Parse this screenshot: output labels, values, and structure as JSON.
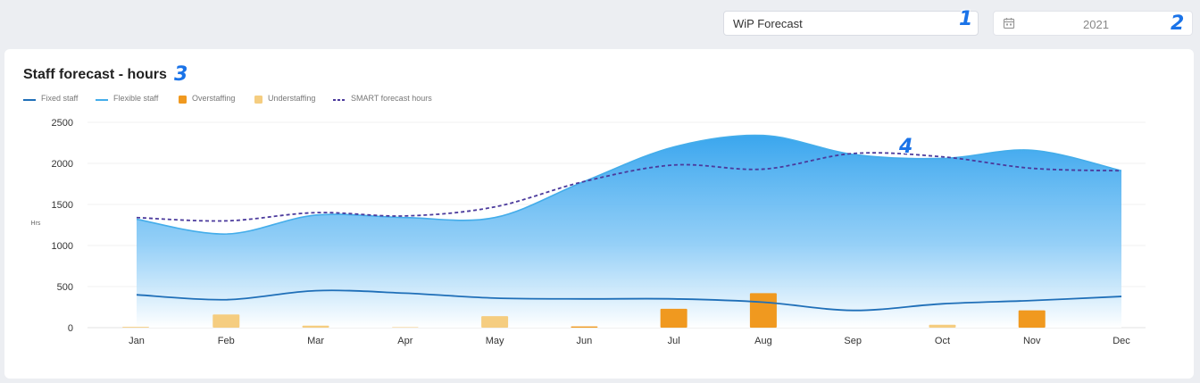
{
  "header": {
    "view_select": "WiP Forecast",
    "year": "2021",
    "year_icon": "calendar-icon"
  },
  "callouts": [
    "1",
    "2",
    "3",
    "4"
  ],
  "card": {
    "title": "Staff forecast - hours"
  },
  "colors": {
    "fixed": "#1f6fb8",
    "flexible": "#44adea",
    "overstaffing": "#f0991f",
    "understaffing": "#f5cd80",
    "smart": "#4b3a9c"
  },
  "legend": [
    {
      "key": "fixed",
      "label": "Fixed staff",
      "kind": "line"
    },
    {
      "key": "flexible",
      "label": "Flexible staff",
      "kind": "line"
    },
    {
      "key": "overstaffing",
      "label": "Overstaffing",
      "kind": "box"
    },
    {
      "key": "understaffing",
      "label": "Understaffing",
      "kind": "box"
    },
    {
      "key": "smart",
      "label": "SMART forecast hours",
      "kind": "dash"
    }
  ],
  "chart_data": {
    "type": "area",
    "title": "Staff forecast - hours",
    "ylabel": "Hrs",
    "xlabel": "",
    "ylim": [
      0,
      2500
    ],
    "yticks": [
      0,
      500,
      1000,
      1500,
      2000,
      2500
    ],
    "grid": true,
    "legend_position": "top-left",
    "categories": [
      "Jan",
      "Feb",
      "Mar",
      "Apr",
      "May",
      "Jun",
      "Jul",
      "Aug",
      "Sep",
      "Oct",
      "Nov",
      "Dec"
    ],
    "series": [
      {
        "name": "Flexible staff",
        "kind": "area",
        "values": [
          1320,
          1140,
          1370,
          1340,
          1340,
          1780,
          2200,
          2340,
          2110,
          2060,
          2160,
          1910
        ]
      },
      {
        "name": "Fixed staff",
        "kind": "line",
        "values": [
          400,
          340,
          450,
          420,
          360,
          350,
          350,
          310,
          210,
          290,
          330,
          380
        ]
      },
      {
        "name": "SMART forecast hours",
        "kind": "dashed",
        "values": [
          1340,
          1300,
          1400,
          1360,
          1470,
          1780,
          1980,
          1930,
          2120,
          2080,
          1940,
          1910
        ]
      },
      {
        "name": "Understaffing",
        "kind": "bar",
        "values": [
          10,
          160,
          25,
          5,
          140,
          0,
          0,
          0,
          0,
          35,
          0,
          0
        ]
      },
      {
        "name": "Overstaffing",
        "kind": "bar",
        "values": [
          0,
          0,
          0,
          0,
          0,
          15,
          230,
          420,
          0,
          0,
          210,
          0
        ]
      }
    ]
  }
}
